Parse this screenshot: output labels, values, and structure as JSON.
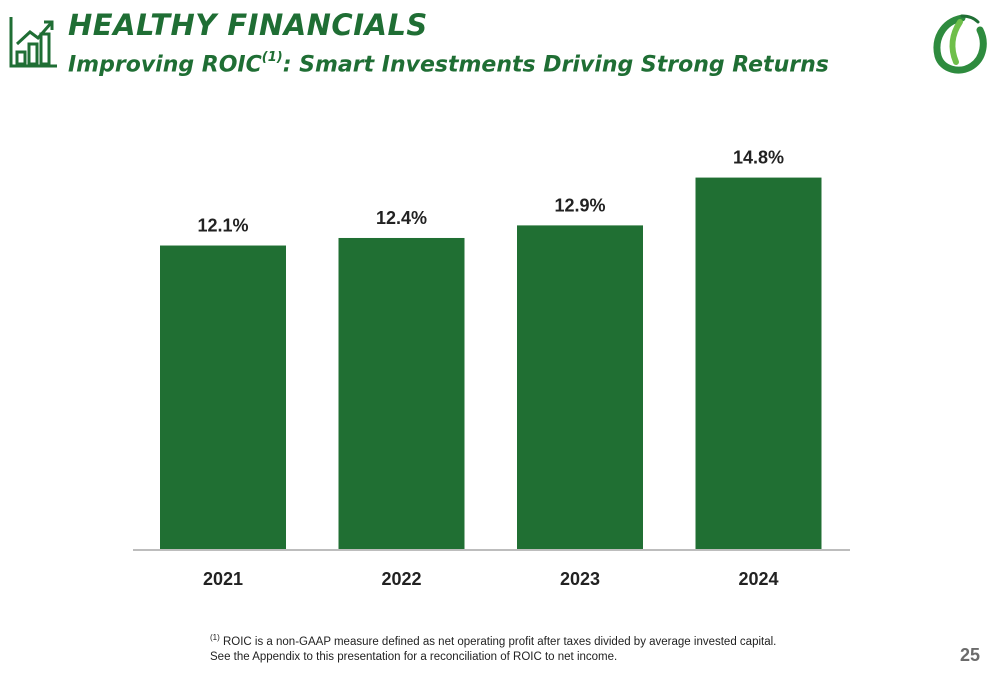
{
  "header": {
    "title": "HEALTHY FINANCIALS",
    "subtitle_main": "Improving ROIC",
    "subtitle_ref": "(1)",
    "subtitle_rest": ": Smart Investments Driving Strong Returns",
    "icon": "bar-chart-growth-icon",
    "logo": "leaf-logo"
  },
  "colors": {
    "brand_green": "#1f6e34",
    "bar": "#206f33",
    "axis": "#bdbdbd"
  },
  "chart_data": {
    "type": "bar",
    "categories": [
      "2021",
      "2022",
      "2023",
      "2024"
    ],
    "values": [
      12.1,
      12.4,
      12.9,
      14.8
    ],
    "value_labels": [
      "12.1%",
      "12.4%",
      "12.9%",
      "14.8%"
    ],
    "title": "",
    "xlabel": "",
    "ylabel": "",
    "ylim": [
      0,
      15.3
    ],
    "grid": false,
    "legend": "none"
  },
  "footnote": {
    "marker": "(1)",
    "line1": "ROIC is a non-GAAP measure defined as net operating profit after taxes divided by average invested capital.",
    "line2": "See the Appendix to this presentation for a reconciliation of ROIC to net income."
  },
  "page_number": "25"
}
